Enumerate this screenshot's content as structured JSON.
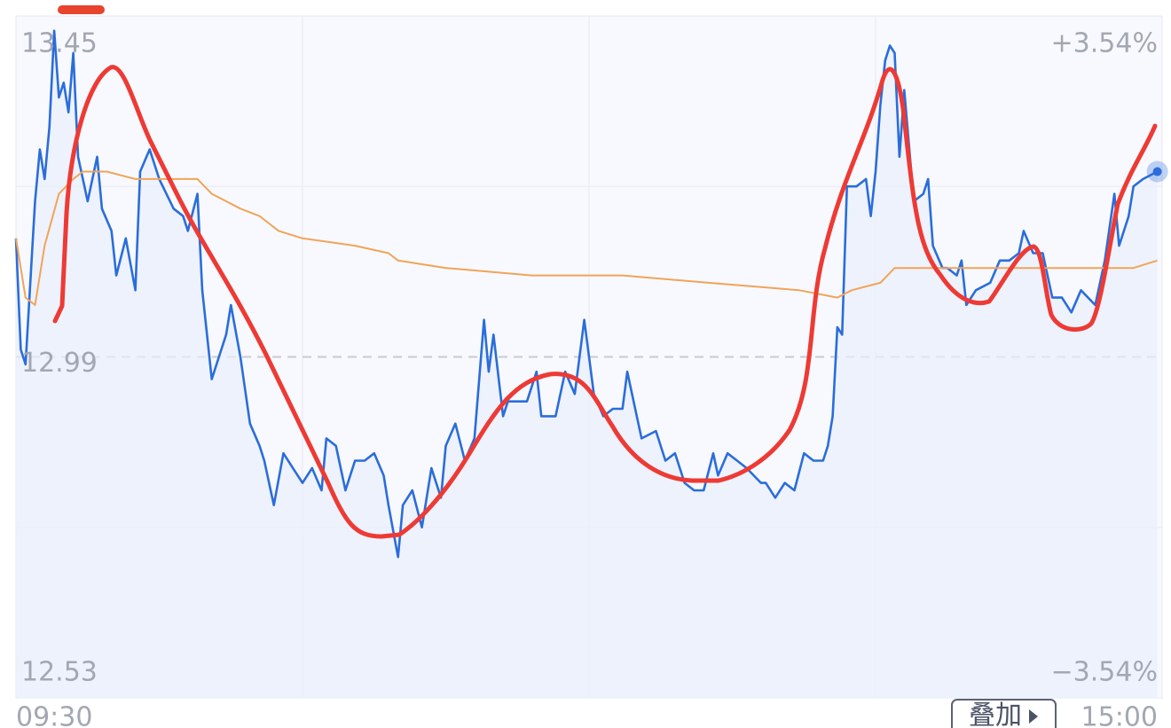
{
  "chart_data": {
    "type": "line",
    "series": [
      {
        "color": "#2a6ddb",
        "x": [
          0,
          1,
          2,
          4,
          5,
          6,
          7,
          8,
          9,
          10,
          11,
          12,
          13,
          15,
          17,
          18,
          20,
          21,
          23,
          25,
          26,
          28,
          30,
          33,
          35,
          36,
          38,
          39,
          41,
          43,
          44,
          45,
          47,
          49,
          51,
          52,
          54,
          56,
          58,
          60,
          62,
          64,
          65,
          67,
          69,
          71,
          73,
          75,
          77,
          78,
          80,
          81,
          83,
          85,
          87,
          89,
          90,
          92,
          94,
          96,
          98,
          99,
          100,
          102,
          103,
          105,
          107,
          109,
          110,
          113,
          115,
          117,
          119,
          121,
          123,
          125,
          127,
          128,
          130,
          131,
          134,
          136,
          138,
          140,
          142,
          144,
          146,
          147,
          149,
          151,
          153,
          156,
          157,
          159,
          161,
          163,
          165,
          167,
          169,
          170,
          171,
          172,
          173,
          174,
          176,
          178,
          179,
          180,
          181,
          182,
          183,
          184,
          185,
          186,
          188,
          190,
          191,
          192,
          194,
          195,
          197,
          198,
          199,
          201,
          204,
          206,
          208,
          210,
          211,
          213,
          215,
          217,
          219,
          221,
          223,
          226,
          228,
          230,
          231,
          233,
          234,
          236,
          239
        ],
        "values": [
          13.15,
          13.0,
          12.98,
          13.2,
          13.27,
          13.23,
          13.3,
          13.43,
          13.34,
          13.36,
          13.32,
          13.4,
          13.26,
          13.2,
          13.26,
          13.19,
          13.16,
          13.1,
          13.15,
          13.08,
          13.24,
          13.27,
          13.23,
          13.19,
          13.18,
          13.16,
          13.21,
          13.08,
          12.96,
          13.0,
          13.02,
          13.06,
          12.99,
          12.9,
          12.87,
          12.85,
          12.79,
          12.86,
          12.84,
          12.82,
          12.84,
          12.81,
          12.88,
          12.87,
          12.81,
          12.85,
          12.85,
          12.86,
          12.83,
          12.79,
          12.72,
          12.79,
          12.81,
          12.76,
          12.84,
          12.8,
          12.87,
          12.9,
          12.85,
          12.88,
          13.04,
          12.97,
          13.02,
          12.91,
          12.93,
          12.93,
          12.93,
          12.97,
          12.91,
          12.91,
          12.97,
          12.94,
          13.04,
          12.94,
          12.91,
          12.92,
          12.92,
          12.97,
          12.91,
          12.88,
          12.89,
          12.85,
          12.86,
          12.82,
          12.81,
          12.81,
          12.86,
          12.83,
          12.86,
          12.85,
          12.84,
          12.82,
          12.82,
          12.8,
          12.82,
          12.81,
          12.86,
          12.85,
          12.85,
          12.87,
          12.91,
          13.03,
          13.02,
          13.22,
          13.22,
          13.23,
          13.18,
          13.24,
          13.33,
          13.39,
          13.41,
          13.4,
          13.26,
          13.35,
          13.2,
          13.21,
          13.23,
          13.14,
          13.11,
          13.11,
          13.1,
          13.12,
          13.06,
          13.08,
          13.09,
          13.12,
          13.12,
          13.13,
          13.16,
          13.13,
          13.13,
          13.07,
          13.07,
          13.05,
          13.08,
          13.06,
          13.12,
          13.21,
          13.14,
          13.18,
          13.22,
          13.23,
          13.24
        ]
      },
      {
        "color": "#f0a458",
        "x": [
          0,
          2,
          4,
          6,
          9,
          12,
          14,
          19,
          25,
          30,
          38,
          41,
          47,
          51,
          53,
          55,
          60,
          71,
          78,
          80,
          90,
          108,
          127,
          145,
          164,
          172,
          175,
          181,
          184,
          188,
          201,
          223,
          234,
          239
        ],
        "values": [
          13.15,
          13.07,
          13.06,
          13.14,
          13.21,
          13.23,
          13.24,
          13.24,
          13.23,
          13.23,
          13.23,
          13.21,
          13.19,
          13.18,
          13.17,
          13.16,
          13.15,
          13.14,
          13.13,
          13.12,
          13.11,
          13.1,
          13.1,
          13.09,
          13.08,
          13.07,
          13.08,
          13.09,
          13.11,
          13.11,
          13.11,
          13.11,
          13.11,
          13.12
        ]
      }
    ],
    "xlim": [
      0,
      240
    ],
    "xticks": [
      {
        "value": 0,
        "label": "09:30"
      },
      {
        "value": 240,
        "label": "15:00"
      }
    ],
    "ylim": [
      12.53,
      13.45
    ],
    "yticks": [
      13.45,
      12.99,
      12.53
    ],
    "y2lim": [
      -3.54,
      3.54
    ],
    "y2ticks": [
      {
        "value": 3.54,
        "label": "+3.54%"
      },
      {
        "value": -3.54,
        "label": "−3.54%"
      }
    ],
    "overlay_button": "叠加"
  }
}
